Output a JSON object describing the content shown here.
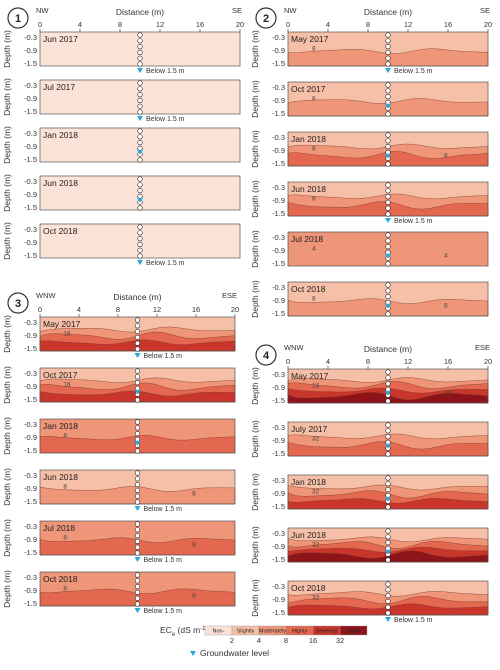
{
  "colors": {
    "classes": [
      "#fbe3d8",
      "#f6c0a8",
      "#ef9578",
      "#e4674f",
      "#c9352b",
      "#8f141a"
    ],
    "groundwater": "#2aa7d6",
    "frame": "#555555"
  },
  "axis": {
    "distance_label": "Distance (m)",
    "depth_label": "Depth (m)",
    "x_ticks": [
      "0",
      "4",
      "8",
      "12",
      "16",
      "20"
    ],
    "y_ticks": [
      "-0.3",
      "-0.9",
      "-1.5"
    ]
  },
  "below_label": "Below 1.5 m",
  "panels": [
    {
      "number": "1",
      "left": "NW",
      "right": "SE",
      "rows": [
        {
          "date": "Jun 2017",
          "below": true,
          "base": 0,
          "bands": [],
          "contours": []
        },
        {
          "date": "Jul 2017",
          "below": true,
          "base": 0,
          "bands": [],
          "contours": []
        },
        {
          "date": "Jan 2018",
          "below": false,
          "base": 0,
          "bands": [],
          "contours": []
        },
        {
          "date": "Jun 2018",
          "below": false,
          "base": 0,
          "bands": [],
          "contours": []
        },
        {
          "date": "Oct 2018",
          "below": true,
          "base": 0,
          "bands": [],
          "contours": []
        }
      ]
    },
    {
      "number": "2",
      "left": "NW",
      "right": "SE",
      "rows": [
        {
          "date": "May 2017",
          "below": true,
          "base": 1,
          "bands": [
            2
          ],
          "contours": [
            "8"
          ]
        },
        {
          "date": "Oct 2017",
          "below": false,
          "base": 1,
          "bands": [
            2
          ],
          "contours": [
            "8"
          ]
        },
        {
          "date": "Jan 2018",
          "below": false,
          "base": 1,
          "bands": [
            2,
            3
          ],
          "contours": [
            "8",
            "8"
          ]
        },
        {
          "date": "Jun 2018",
          "below": true,
          "base": 1,
          "bands": [
            2,
            3
          ],
          "contours": [
            "8"
          ]
        },
        {
          "date": "Jul 2018",
          "below": false,
          "base": 2,
          "bands": [],
          "contours": [
            "4",
            "4"
          ]
        },
        {
          "date": "Oct 2018",
          "below": false,
          "base": 1,
          "bands": [
            2
          ],
          "contours": [
            "8",
            "8"
          ]
        }
      ]
    },
    {
      "number": "3",
      "left": "WNW",
      "right": "ESE",
      "rows": [
        {
          "date": "May 2017",
          "below": true,
          "base": 1,
          "bands": [
            2,
            3,
            4
          ],
          "contours": [
            "16"
          ]
        },
        {
          "date": "Oct 2017",
          "below": false,
          "base": 1,
          "bands": [
            2,
            3,
            4
          ],
          "contours": [
            "16"
          ]
        },
        {
          "date": "Jan 2018",
          "below": false,
          "base": 2,
          "bands": [
            3
          ],
          "contours": [
            "8"
          ]
        },
        {
          "date": "Jun 2018",
          "below": true,
          "base": 1,
          "bands": [
            2
          ],
          "contours": [
            "8",
            "8"
          ]
        },
        {
          "date": "Jul 2018",
          "below": true,
          "base": 2,
          "bands": [
            3
          ],
          "contours": [
            "8",
            "8"
          ]
        },
        {
          "date": "Oct 2018",
          "below": true,
          "base": 2,
          "bands": [
            3
          ],
          "contours": [
            "8",
            "8"
          ]
        }
      ]
    },
    {
      "number": "4",
      "left": "WNW",
      "right": "ESE",
      "rows": [
        {
          "date": "May 2017",
          "below": false,
          "base": 1,
          "bands": [
            2,
            3,
            4,
            5
          ],
          "contours": [
            "16",
            "16"
          ]
        },
        {
          "date": "July 2017",
          "below": false,
          "base": 1,
          "bands": [
            2,
            3
          ],
          "contours": [
            "32"
          ]
        },
        {
          "date": "Jan 2018",
          "below": false,
          "base": 1,
          "bands": [
            2,
            3,
            4
          ],
          "contours": [
            "32"
          ]
        },
        {
          "date": "Jun 2018",
          "below": false,
          "base": 1,
          "bands": [
            2,
            3,
            4,
            5
          ],
          "contours": [
            "32"
          ]
        },
        {
          "date": "Oct 2018",
          "below": true,
          "base": 1,
          "bands": [
            2,
            3,
            4
          ],
          "contours": [
            "32"
          ]
        }
      ]
    }
  ],
  "legend": {
    "title": "EC",
    "title_sub": "e",
    "title_unit": "(dS m",
    "title_sup": "-1",
    "title_end": ")",
    "classes": [
      "Non-",
      "Slightly",
      "Moderately",
      "Highly",
      "Severely",
      "saline"
    ],
    "ticks": [
      "2",
      "4",
      "8",
      "16",
      "32"
    ],
    "groundwater_label": "Groundwater level"
  }
}
